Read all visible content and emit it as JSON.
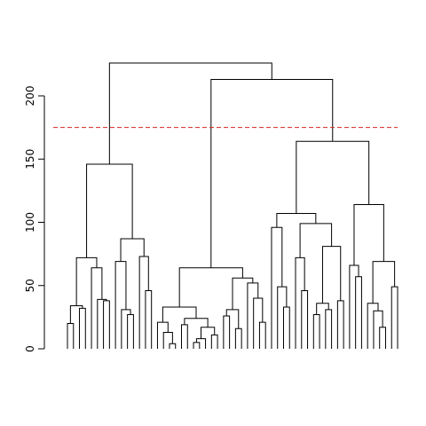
{
  "chart_data": {
    "type": "dendrogram",
    "title": "",
    "xlabel": "",
    "ylabel": "",
    "ylim": [
      0,
      225
    ],
    "yticks": [
      0,
      50,
      100,
      150,
      200
    ],
    "ytick_labels": [
      "0",
      "50",
      "100",
      "150",
      "200"
    ],
    "cut_height": 175,
    "cut_color": "#d7261e",
    "root_height": 226,
    "top_merges": [
      {
        "height": 226,
        "description": "root: left cluster + right cluster"
      },
      {
        "height": 213,
        "description": "middle cluster + far-right cluster"
      },
      {
        "height": 164,
        "description": "far-right cluster"
      },
      {
        "height": 146,
        "description": "left cluster"
      },
      {
        "height": 114,
        "description": "sub-cluster of far-right"
      },
      {
        "height": 107,
        "description": "sub-cluster of far-right"
      },
      {
        "height": 99,
        "description": "sub-cluster of far-right"
      }
    ]
  }
}
